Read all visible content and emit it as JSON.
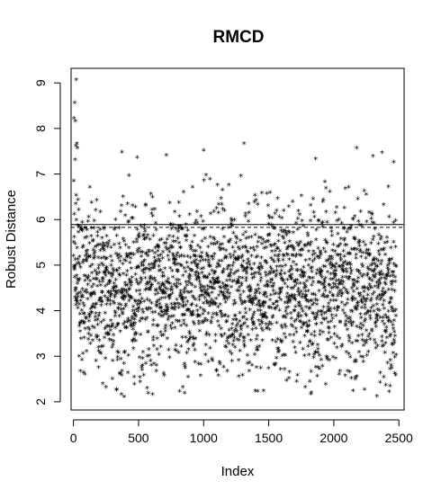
{
  "chart_data": {
    "type": "scatter",
    "title": "RMCD",
    "xlabel": "Index",
    "ylabel": "Robust Distance",
    "marker": "*",
    "xlim": [
      -18,
      2540
    ],
    "ylim": [
      1.82,
      9.32
    ],
    "xticks": [
      0,
      500,
      1000,
      1500,
      2000,
      2500
    ],
    "yticks": [
      2,
      3,
      4,
      5,
      6,
      7,
      8,
      9
    ],
    "xtick_labels": [
      "0",
      "500",
      "1000",
      "1500",
      "2000",
      "2500"
    ],
    "ytick_labels": [
      "2",
      "3",
      "4",
      "5",
      "6",
      "7",
      "8",
      "9"
    ],
    "cutoff_solid": 5.89,
    "cutoff_dashed": 5.83,
    "n_points": 2480,
    "highlighted_points": [
      {
        "x": 4,
        "y": 8.2
      },
      {
        "x": 10,
        "y": 8.55
      },
      {
        "x": 15,
        "y": 8.15
      },
      {
        "x": 22,
        "y": 9.05
      },
      {
        "x": 18,
        "y": 7.6
      },
      {
        "x": 25,
        "y": 7.65
      },
      {
        "x": 12,
        "y": 7.3
      },
      {
        "x": 30,
        "y": 7.55
      },
      {
        "x": 1310,
        "y": 7.65
      },
      {
        "x": 1000,
        "y": 7.5
      },
      {
        "x": 2175,
        "y": 7.55
      },
      {
        "x": 2460,
        "y": 7.25
      },
      {
        "x": 390,
        "y": 2.1
      },
      {
        "x": 2425,
        "y": 2.2
      },
      {
        "x": 250,
        "y": 2.3
      },
      {
        "x": 1780,
        "y": 2.3
      }
    ],
    "y_distribution": {
      "center": 4.45,
      "spread": 0.9,
      "min": 2.1,
      "max": 9.05
    },
    "legend": "none",
    "grid": false,
    "colors": {
      "points": "#000000",
      "lines": "#000000",
      "background": "#ffffff"
    }
  }
}
